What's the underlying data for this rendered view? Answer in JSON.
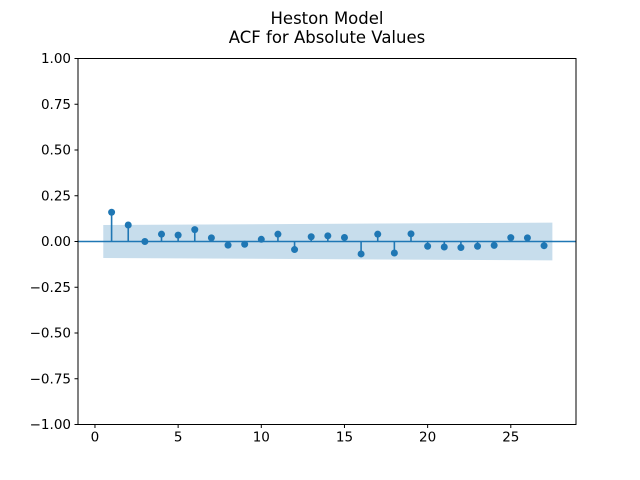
{
  "figure": {
    "title_line1": "Heston Model",
    "title_line2": "ACF for Absolute Values"
  },
  "colors": {
    "accent": "#1f77b4",
    "band": "#c7ddec",
    "spine": "#000000",
    "text": "#000000",
    "background": "#ffffff"
  },
  "chart_data": {
    "type": "stem",
    "title": "Heston Model\nACF for Absolute Values",
    "xlabel": "",
    "ylabel": "",
    "grid": false,
    "legend": null,
    "xlim": [
      -1.02,
      28.92
    ],
    "ylim": [
      -1.0,
      1.0
    ],
    "lags": [
      1,
      2,
      3,
      4,
      5,
      6,
      7,
      8,
      9,
      10,
      11,
      12,
      13,
      14,
      15,
      16,
      17,
      18,
      19,
      20,
      21,
      22,
      23,
      24,
      25,
      26,
      27
    ],
    "acf_values": [
      0.16,
      0.09,
      0.0,
      0.04,
      0.035,
      0.065,
      0.02,
      -0.02,
      -0.015,
      0.012,
      0.04,
      -0.044,
      0.026,
      0.031,
      0.022,
      -0.068,
      0.04,
      -0.063,
      0.042,
      -0.026,
      -0.03,
      -0.033,
      -0.026,
      -0.021,
      0.021,
      0.02,
      -0.023
    ],
    "zero_line": 0.0,
    "confidence_band": {
      "x_start": 0.5,
      "x_end": 27.5,
      "upper_start": 0.09,
      "upper_end": 0.103,
      "lower_start": -0.09,
      "lower_end": -0.103
    },
    "xticks": {
      "values": [
        0,
        5,
        10,
        15,
        20,
        25
      ],
      "labels": [
        "0",
        "5",
        "10",
        "15",
        "20",
        "25"
      ]
    },
    "yticks": {
      "values": [
        1.0,
        0.75,
        0.5,
        0.25,
        0.0,
        -0.25,
        -0.5,
        -0.75,
        -1.0
      ],
      "labels": [
        "1.00",
        "0.75",
        "0.50",
        "0.25",
        "0.00",
        "−0.25",
        "−0.50",
        "−0.75",
        "−1.00"
      ]
    }
  }
}
